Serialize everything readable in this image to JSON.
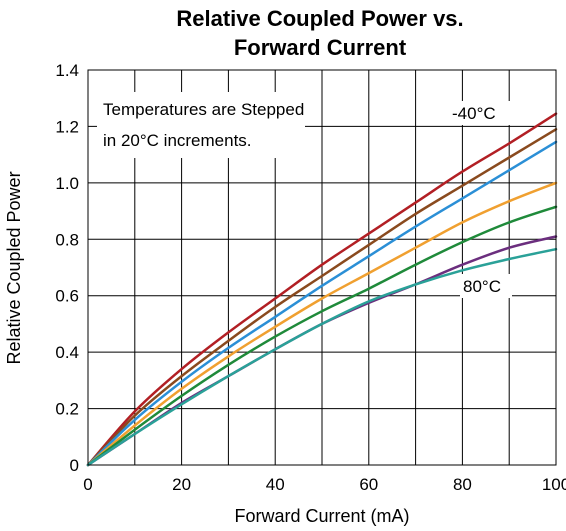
{
  "chart_data": {
    "type": "line",
    "title_line1": "Relative Coupled Power vs.",
    "title_line2": "Forward Current",
    "xlabel": "Forward Current (mA)",
    "ylabel": "Relative Coupled Power",
    "xlim": [
      0,
      100
    ],
    "ylim": [
      0,
      1.4
    ],
    "x_ticks": [
      0,
      20,
      40,
      60,
      80,
      100
    ],
    "y_ticks": [
      0,
      0.2,
      0.4,
      0.6,
      0.8,
      1.0,
      1.2,
      1.4
    ],
    "x_tick_labels": [
      "0",
      "20",
      "40",
      "60",
      "80",
      "100"
    ],
    "y_tick_labels": [
      "0",
      "0.2",
      "0.4",
      "0.6",
      "0.8",
      "1.0",
      "1.2",
      "1.4"
    ],
    "grid": true,
    "annotations": {
      "note_line1": "Temperatures are Stepped",
      "note_line2": "in 20°C increments.",
      "top_label": "-40°C",
      "bottom_label": "80°C"
    },
    "x": [
      0,
      10,
      20,
      30,
      40,
      50,
      60,
      70,
      80,
      90,
      100
    ],
    "series": [
      {
        "color": "#b21f24",
        "values": [
          0,
          0.19,
          0.34,
          0.47,
          0.59,
          0.71,
          0.82,
          0.93,
          1.04,
          1.14,
          1.245
        ]
      },
      {
        "color": "#8a4a1e",
        "values": [
          0,
          0.175,
          0.315,
          0.44,
          0.56,
          0.67,
          0.78,
          0.89,
          0.99,
          1.09,
          1.19
        ]
      },
      {
        "color": "#2b8fd6",
        "values": [
          0,
          0.16,
          0.295,
          0.415,
          0.525,
          0.635,
          0.74,
          0.845,
          0.945,
          1.045,
          1.145
        ]
      },
      {
        "color": "#f0a030",
        "values": [
          0,
          0.14,
          0.27,
          0.385,
          0.49,
          0.59,
          0.68,
          0.77,
          0.86,
          0.935,
          1.0
        ]
      },
      {
        "color": "#1f8a3a",
        "values": [
          0,
          0.125,
          0.245,
          0.355,
          0.455,
          0.545,
          0.625,
          0.71,
          0.79,
          0.86,
          0.915
        ]
      },
      {
        "color": "#6b2e7e",
        "values": [
          0,
          0.11,
          0.22,
          0.315,
          0.41,
          0.5,
          0.575,
          0.64,
          0.71,
          0.77,
          0.81
        ]
      },
      {
        "color": "#2aa198",
        "values": [
          0,
          0.11,
          0.215,
          0.315,
          0.41,
          0.5,
          0.58,
          0.64,
          0.69,
          0.73,
          0.765
        ]
      }
    ]
  }
}
